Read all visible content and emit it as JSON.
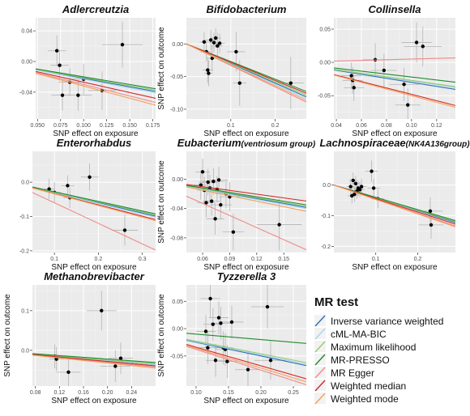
{
  "legend": {
    "title": "MR test",
    "entries": [
      {
        "name": "Inverse variance weighted",
        "color": "#2e6db4"
      },
      {
        "name": "cML-MA-BIC",
        "color": "#a9d4ea"
      },
      {
        "name": "Maximum likelihood",
        "color": "#8fce6e"
      },
      {
        "name": "MR-PRESSO",
        "color": "#1f8a2b"
      },
      {
        "name": "MR Egger",
        "color": "#f08a8a"
      },
      {
        "name": "Weighted median",
        "color": "#d62728"
      },
      {
        "name": "Weighted mode",
        "color": "#f5a05a"
      }
    ]
  },
  "chart_data": [
    {
      "type": "scatter",
      "title": "Adlercreutzia",
      "title_suffix": "",
      "xlabel": "SNP effect on exposure",
      "ylabel": "",
      "xlim": [
        0.048,
        0.178
      ],
      "ylim": [
        -0.075,
        0.057
      ],
      "xticks": [
        0.05,
        0.075,
        0.1,
        0.125,
        0.15,
        0.175
      ],
      "xticklabels": [
        "0.050",
        "0.075",
        "0.100",
        "0.125",
        "0.150",
        "0.175"
      ],
      "yticks": [
        -0.04,
        0.0,
        0.04
      ],
      "yticklabels": [
        "-0.04",
        "0.00",
        "0.04"
      ],
      "points": [
        {
          "x": 0.071,
          "y": 0.014,
          "xe": 0.01,
          "ye": 0.02
        },
        {
          "x": 0.074,
          "y": -0.005,
          "xe": 0.01,
          "ye": 0.02
        },
        {
          "x": 0.077,
          "y": -0.044,
          "xe": 0.012,
          "ye": 0.02
        },
        {
          "x": 0.085,
          "y": -0.027,
          "xe": 0.012,
          "ye": 0.018
        },
        {
          "x": 0.094,
          "y": -0.044,
          "xe": 0.015,
          "ye": 0.02
        },
        {
          "x": 0.1,
          "y": -0.023,
          "xe": 0.015,
          "ye": 0.02
        },
        {
          "x": 0.12,
          "y": -0.038,
          "xe": 0.015,
          "ye": 0.025
        },
        {
          "x": 0.142,
          "y": 0.022,
          "xe": 0.022,
          "ye": 0.03
        }
      ],
      "lines": [
        {
          "method": "Inverse variance weighted",
          "slope": -0.22
        },
        {
          "method": "cML-MA-BIC",
          "slope": -0.23
        },
        {
          "method": "Maximum likelihood",
          "slope": -0.21
        },
        {
          "method": "MR-PRESSO",
          "slope": -0.2
        },
        {
          "method": "MR Egger",
          "slope": -0.3
        },
        {
          "method": "Weighted median",
          "slope": -0.27
        },
        {
          "method": "Weighted mode",
          "slope": -0.32
        }
      ]
    },
    {
      "type": "scatter",
      "title": "Bifidobacterium",
      "title_suffix": "",
      "xlabel": "SNP effect on exposure",
      "ylabel": "SNP effect on outcome",
      "xlim": [
        0.0,
        0.27
      ],
      "ylim": [
        -0.115,
        0.04
      ],
      "xticks": [
        0.1,
        0.2
      ],
      "xticklabels": [
        "0.1",
        "0.2"
      ],
      "yticks": [
        -0.1,
        -0.05,
        0.0
      ],
      "yticklabels": [
        "-0.10",
        "-0.05",
        "0.00"
      ],
      "points": [
        {
          "x": 0.04,
          "y": 0.003,
          "xe": 0.01,
          "ye": 0.015
        },
        {
          "x": 0.045,
          "y": -0.012,
          "xe": 0.012,
          "ye": 0.015
        },
        {
          "x": 0.048,
          "y": -0.04,
          "xe": 0.012,
          "ye": 0.02
        },
        {
          "x": 0.05,
          "y": -0.045,
          "xe": 0.01,
          "ye": 0.02
        },
        {
          "x": 0.055,
          "y": 0.006,
          "xe": 0.012,
          "ye": 0.015
        },
        {
          "x": 0.058,
          "y": -0.022,
          "xe": 0.012,
          "ye": 0.02
        },
        {
          "x": 0.062,
          "y": 0.002,
          "xe": 0.012,
          "ye": 0.015
        },
        {
          "x": 0.066,
          "y": 0.009,
          "xe": 0.012,
          "ye": 0.015
        },
        {
          "x": 0.07,
          "y": -0.003,
          "xe": 0.012,
          "ye": 0.02
        },
        {
          "x": 0.075,
          "y": 0.001,
          "xe": 0.012,
          "ye": 0.015
        },
        {
          "x": 0.112,
          "y": -0.012,
          "xe": 0.02,
          "ye": 0.03
        },
        {
          "x": 0.12,
          "y": -0.06,
          "xe": 0.015,
          "ye": 0.035
        },
        {
          "x": 0.235,
          "y": -0.06,
          "xe": 0.03,
          "ye": 0.04
        }
      ],
      "lines": [
        {
          "method": "Inverse variance weighted",
          "slope": -0.3
        },
        {
          "method": "cML-MA-BIC",
          "slope": -0.31
        },
        {
          "method": "Maximum likelihood",
          "slope": -0.29
        },
        {
          "method": "MR-PRESSO",
          "slope": -0.27
        },
        {
          "method": "MR Egger",
          "slope": -0.33
        },
        {
          "method": "Weighted median",
          "slope": -0.28
        },
        {
          "method": "Weighted mode",
          "slope": -0.32
        }
      ]
    },
    {
      "type": "scatter",
      "title": "Collinsella",
      "title_suffix": "",
      "xlabel": "SNP effect on exposure",
      "ylabel": "",
      "xlim": [
        0.038,
        0.135
      ],
      "ylim": [
        -0.085,
        0.067
      ],
      "xticks": [
        0.04,
        0.06,
        0.08,
        0.1,
        0.12
      ],
      "xticklabels": [
        "0.04",
        "0.06",
        "0.08",
        "0.10",
        "0.12"
      ],
      "yticks": [
        -0.05,
        0.0,
        0.05
      ],
      "yticklabels": [
        "-0.05",
        "0.00",
        "0.05"
      ],
      "points": [
        {
          "x": 0.052,
          "y": -0.02,
          "xe": 0.008,
          "ye": 0.02
        },
        {
          "x": 0.053,
          "y": -0.027,
          "xe": 0.008,
          "ye": 0.02
        },
        {
          "x": 0.054,
          "y": -0.038,
          "xe": 0.008,
          "ye": 0.02
        },
        {
          "x": 0.071,
          "y": 0.004,
          "xe": 0.01,
          "ye": 0.025
        },
        {
          "x": 0.078,
          "y": -0.012,
          "xe": 0.01,
          "ye": 0.025
        },
        {
          "x": 0.094,
          "y": -0.033,
          "xe": 0.012,
          "ye": 0.025
        },
        {
          "x": 0.097,
          "y": -0.064,
          "xe": 0.01,
          "ye": 0.025
        },
        {
          "x": 0.104,
          "y": 0.03,
          "xe": 0.012,
          "ye": 0.03
        },
        {
          "x": 0.109,
          "y": 0.024,
          "xe": 0.015,
          "ye": 0.03
        }
      ],
      "lines": [
        {
          "method": "Inverse variance weighted",
          "slope": -0.3
        },
        {
          "method": "cML-MA-BIC",
          "slope": -0.28
        },
        {
          "method": "Maximum likelihood",
          "slope": -0.27
        },
        {
          "method": "MR-PRESSO",
          "slope": -0.22
        },
        {
          "method": "MR Egger",
          "slope": 0.05
        },
        {
          "method": "Weighted median",
          "slope": -0.48
        },
        {
          "method": "Weighted mode",
          "slope": -0.5
        }
      ]
    },
    {
      "type": "scatter",
      "title": "Enterorhabdus",
      "title_suffix": "",
      "xlabel": "SNP effect on exposure",
      "ylabel": "",
      "xlim": [
        0.05,
        0.33
      ],
      "ylim": [
        -0.205,
        0.09
      ],
      "xticks": [
        0.1,
        0.2,
        0.3
      ],
      "xticklabels": [
        "0.1",
        "0.2",
        "0.3"
      ],
      "yticks": [
        -0.2,
        -0.1,
        0.0
      ],
      "yticklabels": [
        "-0.2",
        "-0.1",
        "0.0"
      ],
      "points": [
        {
          "x": 0.088,
          "y": -0.02,
          "xe": 0.012,
          "ye": 0.03
        },
        {
          "x": 0.1,
          "y": -0.03,
          "xe": 0.015,
          "ye": 0.03
        },
        {
          "x": 0.13,
          "y": -0.01,
          "xe": 0.015,
          "ye": 0.03
        },
        {
          "x": 0.135,
          "y": -0.045,
          "xe": 0.015,
          "ye": 0.03
        },
        {
          "x": 0.18,
          "y": 0.015,
          "xe": 0.02,
          "ye": 0.04
        },
        {
          "x": 0.26,
          "y": -0.14,
          "xe": 0.03,
          "ye": 0.045
        }
      ],
      "lines": [
        {
          "method": "Inverse variance weighted",
          "slope": -0.3
        },
        {
          "method": "cML-MA-BIC",
          "slope": -0.31
        },
        {
          "method": "Maximum likelihood",
          "slope": -0.29
        },
        {
          "method": "MR-PRESSO",
          "slope": -0.28
        },
        {
          "method": "MR Egger",
          "slope": -0.6
        },
        {
          "method": "Weighted median",
          "slope": -0.33
        },
        {
          "method": "Weighted mode",
          "slope": -0.34
        }
      ]
    },
    {
      "type": "scatter",
      "title": "Eubacterium",
      "title_suffix": "(ventriosum group)",
      "xlabel": "SNP effect on exposure",
      "ylabel": "SNP effect on outcome",
      "xlim": [
        0.042,
        0.175
      ],
      "ylim": [
        -0.1,
        0.038
      ],
      "xticks": [
        0.06,
        0.09,
        0.12,
        0.15
      ],
      "xticklabels": [
        "0.06",
        "0.09",
        "0.12",
        "0.15"
      ],
      "yticks": [
        -0.08,
        -0.04,
        0.0
      ],
      "yticklabels": [
        "-0.08",
        "-0.04",
        "0.00"
      ],
      "points": [
        {
          "x": 0.058,
          "y": -0.008,
          "xe": 0.008,
          "ye": 0.02
        },
        {
          "x": 0.06,
          "y": 0.01,
          "xe": 0.008,
          "ye": 0.018
        },
        {
          "x": 0.062,
          "y": -0.015,
          "xe": 0.008,
          "ye": 0.018
        },
        {
          "x": 0.064,
          "y": -0.032,
          "xe": 0.01,
          "ye": 0.02
        },
        {
          "x": 0.066,
          "y": -0.004,
          "xe": 0.01,
          "ye": 0.018
        },
        {
          "x": 0.068,
          "y": -0.012,
          "xe": 0.01,
          "ye": 0.018
        },
        {
          "x": 0.07,
          "y": -0.03,
          "xe": 0.01,
          "ye": 0.02
        },
        {
          "x": 0.072,
          "y": -0.003,
          "xe": 0.012,
          "ye": 0.018
        },
        {
          "x": 0.074,
          "y": -0.054,
          "xe": 0.01,
          "ye": 0.022
        },
        {
          "x": 0.076,
          "y": -0.014,
          "xe": 0.012,
          "ye": 0.018
        },
        {
          "x": 0.078,
          "y": -0.001,
          "xe": 0.01,
          "ye": 0.018
        },
        {
          "x": 0.08,
          "y": -0.035,
          "xe": 0.012,
          "ye": 0.02
        },
        {
          "x": 0.086,
          "y": -0.02,
          "xe": 0.012,
          "ye": 0.02
        },
        {
          "x": 0.09,
          "y": -0.024,
          "xe": 0.012,
          "ye": 0.02
        },
        {
          "x": 0.094,
          "y": -0.072,
          "xe": 0.012,
          "ye": 0.025
        },
        {
          "x": 0.145,
          "y": -0.062,
          "xe": 0.025,
          "ye": 0.035
        }
      ],
      "lines": [
        {
          "method": "Inverse variance weighted",
          "slope": -0.22
        },
        {
          "method": "cML-MA-BIC",
          "slope": -0.23
        },
        {
          "method": "Maximum likelihood",
          "slope": -0.21
        },
        {
          "method": "MR-PRESSO",
          "slope": -0.2
        },
        {
          "method": "MR Egger",
          "slope": -0.55
        },
        {
          "method": "Weighted median",
          "slope": -0.17
        },
        {
          "method": "Weighted mode",
          "slope": -0.25
        }
      ]
    },
    {
      "type": "scatter",
      "title": "Lachnospiraceae",
      "title_suffix": "(NK4A136group)",
      "xlabel": "SNP effect on exposure",
      "ylabel": "",
      "xlim": [
        0.0,
        0.29
      ],
      "ylim": [
        -0.22,
        0.11
      ],
      "xticks": [
        0.1,
        0.2
      ],
      "xticklabels": [
        "0.1",
        "0.2"
      ],
      "yticks": [
        -0.2,
        -0.1,
        0.0
      ],
      "yticklabels": [
        "-0.2",
        "-0.1",
        "0.0"
      ],
      "points": [
        {
          "x": 0.04,
          "y": -0.005,
          "xe": 0.01,
          "ye": 0.025
        },
        {
          "x": 0.043,
          "y": -0.035,
          "xe": 0.01,
          "ye": 0.025
        },
        {
          "x": 0.046,
          "y": 0.015,
          "xe": 0.01,
          "ye": 0.025
        },
        {
          "x": 0.049,
          "y": -0.03,
          "xe": 0.01,
          "ye": 0.025
        },
        {
          "x": 0.052,
          "y": 0.005,
          "xe": 0.01,
          "ye": 0.025
        },
        {
          "x": 0.055,
          "y": -0.02,
          "xe": 0.012,
          "ye": 0.025
        },
        {
          "x": 0.058,
          "y": -0.01,
          "xe": 0.012,
          "ye": 0.025
        },
        {
          "x": 0.062,
          "y": -0.015,
          "xe": 0.012,
          "ye": 0.025
        },
        {
          "x": 0.066,
          "y": -0.005,
          "xe": 0.012,
          "ye": 0.025
        },
        {
          "x": 0.09,
          "y": 0.045,
          "xe": 0.015,
          "ye": 0.035
        },
        {
          "x": 0.095,
          "y": -0.01,
          "xe": 0.015,
          "ye": 0.03
        },
        {
          "x": 0.105,
          "y": -0.045,
          "xe": 0.015,
          "ye": 0.03
        },
        {
          "x": 0.23,
          "y": -0.085,
          "xe": 0.03,
          "ye": 0.045
        },
        {
          "x": 0.232,
          "y": -0.13,
          "xe": 0.03,
          "ye": 0.045
        }
      ],
      "lines": [
        {
          "method": "Inverse variance weighted",
          "slope": -0.42
        },
        {
          "method": "cML-MA-BIC",
          "slope": -0.43
        },
        {
          "method": "Maximum likelihood",
          "slope": -0.41
        },
        {
          "method": "MR-PRESSO",
          "slope": -0.4
        },
        {
          "method": "MR Egger",
          "slope": -0.46
        },
        {
          "method": "Weighted median",
          "slope": -0.44
        },
        {
          "method": "Weighted mode",
          "slope": -0.47
        }
      ]
    },
    {
      "type": "scatter",
      "title": "Methanobrevibacter",
      "title_suffix": "",
      "xlabel": "SNP effect on exposure",
      "ylabel": "SNP effect on outcome",
      "xlim": [
        0.075,
        0.28
      ],
      "ylim": [
        -0.09,
        0.165
      ],
      "xticks": [
        0.08,
        0.12,
        0.16,
        0.2,
        0.24
      ],
      "xticklabels": [
        "0.08",
        "0.12",
        "0.16",
        "0.20",
        "0.24"
      ],
      "yticks": [
        0.0,
        0.1
      ],
      "yticklabels": [
        "0.0",
        "0.1"
      ],
      "points": [
        {
          "x": 0.112,
          "y": -0.015,
          "xe": 0.012,
          "ye": 0.03
        },
        {
          "x": 0.115,
          "y": -0.022,
          "xe": 0.012,
          "ye": 0.03
        },
        {
          "x": 0.135,
          "y": -0.055,
          "xe": 0.02,
          "ye": 0.035
        },
        {
          "x": 0.19,
          "y": 0.1,
          "xe": 0.025,
          "ye": 0.05
        },
        {
          "x": 0.213,
          "y": -0.04,
          "xe": 0.025,
          "ye": 0.04
        },
        {
          "x": 0.222,
          "y": -0.02,
          "xe": 0.02,
          "ye": 0.04
        }
      ],
      "lines": [
        {
          "method": "Inverse variance weighted",
          "slope": -0.13
        },
        {
          "method": "cML-MA-BIC",
          "slope": -0.13
        },
        {
          "method": "Maximum likelihood",
          "slope": -0.12
        },
        {
          "method": "MR-PRESSO",
          "slope": -0.11
        },
        {
          "method": "MR Egger",
          "slope": -0.15
        },
        {
          "method": "Weighted median",
          "slope": -0.14
        },
        {
          "method": "Weighted mode",
          "slope": -0.16
        }
      ]
    },
    {
      "type": "scatter",
      "title": "Tyzzerella 3",
      "title_suffix": "",
      "xlabel": "SNP effect on exposure",
      "ylabel": "SNP effect on outcome",
      "xlim": [
        0.085,
        0.27
      ],
      "ylim": [
        -0.105,
        0.08
      ],
      "xticks": [
        0.1,
        0.15,
        0.2,
        0.25
      ],
      "xticklabels": [
        "0.10",
        "0.15",
        "0.20",
        "0.25"
      ],
      "yticks": [
        -0.05,
        0.0,
        0.05
      ],
      "yticklabels": [
        "-0.05",
        "0.00",
        "0.05"
      ],
      "points": [
        {
          "x": 0.115,
          "y": -0.005,
          "xe": 0.015,
          "ye": 0.03
        },
        {
          "x": 0.118,
          "y": -0.035,
          "xe": 0.015,
          "ye": 0.03
        },
        {
          "x": 0.122,
          "y": 0.055,
          "xe": 0.015,
          "ye": 0.035
        },
        {
          "x": 0.126,
          "y": 0.008,
          "xe": 0.015,
          "ye": 0.03
        },
        {
          "x": 0.13,
          "y": -0.058,
          "xe": 0.015,
          "ye": 0.03
        },
        {
          "x": 0.135,
          "y": 0.02,
          "xe": 0.015,
          "ye": 0.03
        },
        {
          "x": 0.138,
          "y": 0.01,
          "xe": 0.015,
          "ye": 0.03
        },
        {
          "x": 0.142,
          "y": -0.035,
          "xe": 0.015,
          "ye": 0.03
        },
        {
          "x": 0.145,
          "y": -0.038,
          "xe": 0.015,
          "ye": 0.03
        },
        {
          "x": 0.148,
          "y": -0.06,
          "xe": 0.015,
          "ye": 0.03
        },
        {
          "x": 0.155,
          "y": 0.012,
          "xe": 0.018,
          "ye": 0.03
        },
        {
          "x": 0.18,
          "y": -0.075,
          "xe": 0.02,
          "ye": 0.035
        },
        {
          "x": 0.21,
          "y": 0.04,
          "xe": 0.025,
          "ye": 0.04
        },
        {
          "x": 0.215,
          "y": -0.058,
          "xe": 0.025,
          "ye": 0.035
        }
      ],
      "lines": [
        {
          "method": "Inverse variance weighted",
          "slope": -0.25
        },
        {
          "method": "cML-MA-BIC",
          "slope": -0.24
        },
        {
          "method": "Maximum likelihood",
          "slope": -0.23
        },
        {
          "method": "MR-PRESSO",
          "slope": -0.1
        },
        {
          "method": "MR Egger",
          "slope": -0.38
        },
        {
          "method": "Weighted median",
          "slope": -0.34
        },
        {
          "method": "Weighted mode",
          "slope": -0.36
        }
      ]
    }
  ]
}
